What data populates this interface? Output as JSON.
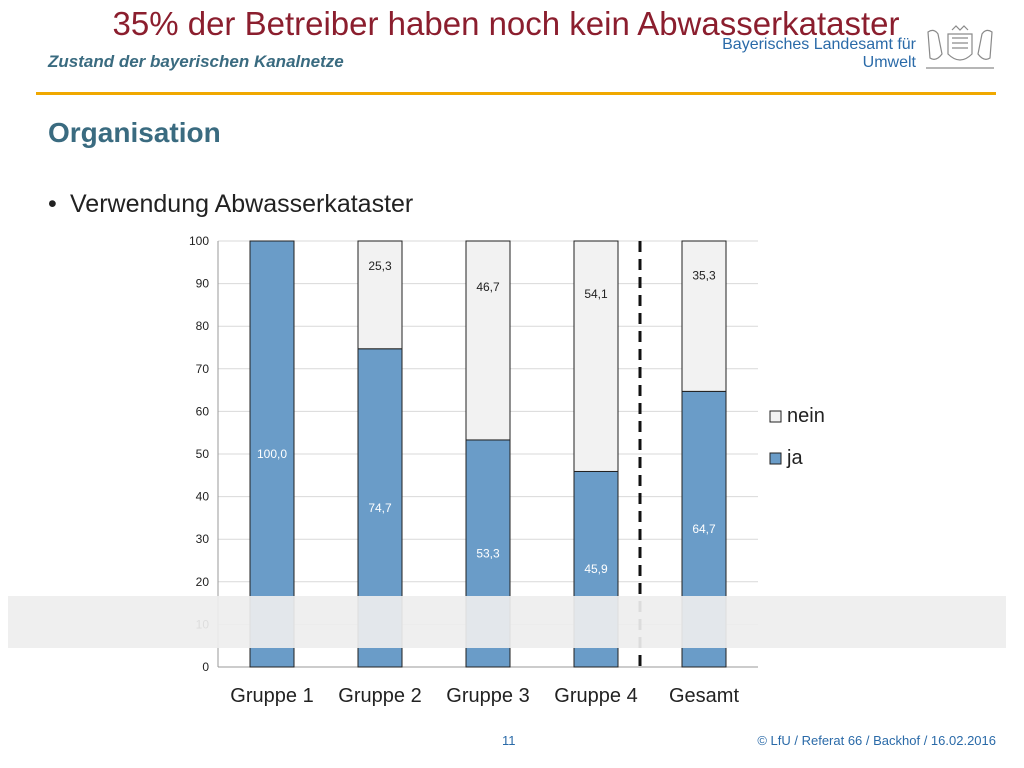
{
  "header": {
    "title": "Zustand der bayerischen Kanalnetze",
    "institute_line1": "Bayerisches Landesamt für",
    "institute_line2": "Umwelt",
    "accent_color": "#f0a800"
  },
  "section_title": "Organisation",
  "bullet_text": "Verwendung Abwasserkataster",
  "banner_text": "35% der Betreiber haben noch kein Abwasserkataster",
  "footer": {
    "page_number": "11",
    "credit": "© LfU / Referat 66 / Backhof / 16.02.2016"
  },
  "chart_data": {
    "type": "bar",
    "stacked": true,
    "categories": [
      "Gruppe 1",
      "Gruppe 2",
      "Gruppe 3",
      "Gruppe 4",
      "Gesamt"
    ],
    "series": [
      {
        "name": "ja",
        "values": [
          100.0,
          74.7,
          53.3,
          45.9,
          64.7
        ],
        "labels": [
          "100,0",
          "74,7",
          "53,3",
          "45,9",
          "64,7"
        ],
        "color": "#6a9cc8"
      },
      {
        "name": "nein",
        "values": [
          0,
          25.3,
          46.7,
          54.1,
          35.3
        ],
        "labels": [
          "",
          "25,3",
          "46,7",
          "54,1",
          "35,3"
        ],
        "color": "#f2f2f2"
      }
    ],
    "ylim": [
      0,
      100
    ],
    "yticks": [
      0,
      10,
      20,
      30,
      40,
      50,
      60,
      70,
      80,
      90,
      100
    ],
    "ytick_labels": [
      "0",
      "10",
      "20",
      "30",
      "40",
      "50",
      "60",
      "70",
      "80",
      "90",
      "100"
    ],
    "legend": {
      "placement": "right",
      "entries": [
        "nein",
        "ja"
      ]
    },
    "separator": "dashed vertical line between Gruppe 4 and Gesamt",
    "grid": true
  }
}
